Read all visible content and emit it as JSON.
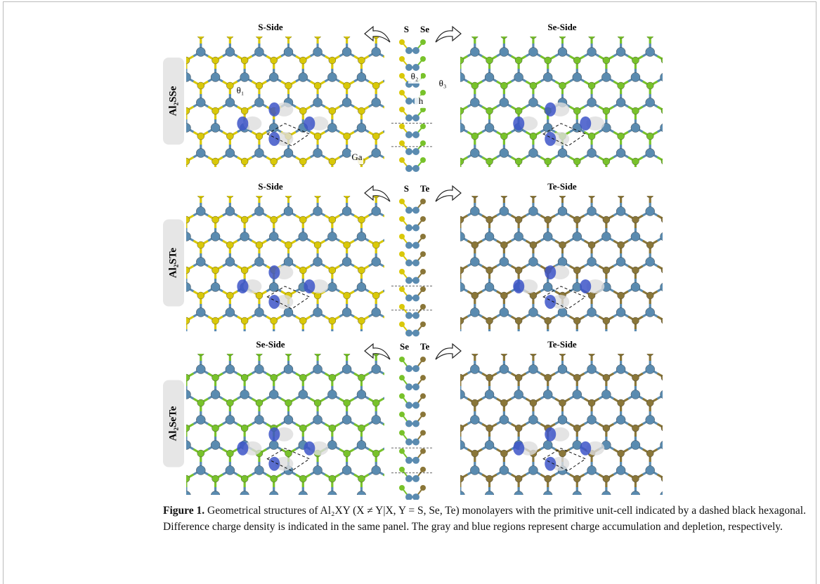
{
  "panels": [
    {
      "row_label": "Al₂SSe",
      "left_title": "S-Side",
      "right_title": "Se-Side",
      "side_labels": [
        "S",
        "Se"
      ],
      "annotations": [
        "θ₁",
        "θ₂",
        "θ₃",
        "h",
        "Ga"
      ]
    },
    {
      "row_label": "Al₂STe",
      "left_title": "S-Side",
      "right_title": "Te-Side",
      "side_labels": [
        "S",
        "Te"
      ]
    },
    {
      "row_label": "Al₂SeTe",
      "left_title": "Se-Side",
      "right_title": "Te-Side",
      "side_labels": [
        "Se",
        "Te"
      ]
    }
  ],
  "caption": {
    "label": "Figure 1.",
    "text": "Geometrical structures of Al₂XY (X ≠ Y|X, Y = S, Se, Te) monolayers with the primitive unit-cell indicated by a dashed black hexagonal. Difference charge density is indicated in the same panel. The gray and blue regions represent charge accumulation and depletion, respectively."
  }
}
